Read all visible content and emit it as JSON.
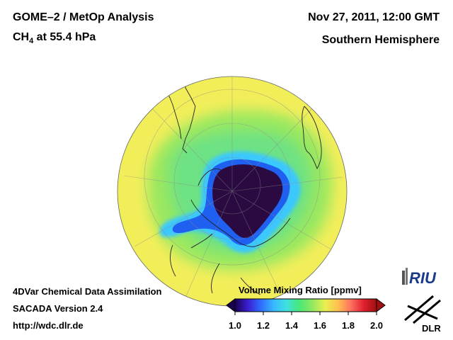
{
  "header": {
    "title_prefix": "GOME–2 / MetOp Analysis",
    "species_main": "CH",
    "species_sub": "4",
    "species_rest": " at 55.4 hPa",
    "date": "Nov 27, 2011, 12:00 GMT",
    "hemisphere": "Southern Hemisphere"
  },
  "footer": {
    "line1": "4DVar Chemical Data Assimilation",
    "line2": "SACADA Version 2.4",
    "line3": "http://wdc.dlr.de"
  },
  "colorbar": {
    "title": "Volume Mixing Ratio [ppmv]",
    "ticks": [
      "1.0",
      "1.2",
      "1.4",
      "1.6",
      "1.8",
      "2.0"
    ],
    "min": 1.0,
    "max": 2.0,
    "colors": [
      "#1a0050",
      "#3a1fd0",
      "#2f6cff",
      "#38b8ff",
      "#40e0e0",
      "#48e878",
      "#90e860",
      "#e8f050",
      "#ffc050",
      "#ff7060",
      "#e02030",
      "#a01010"
    ]
  },
  "map": {
    "projection": "orthographic-south-polar",
    "background_level": "#f2ee5a",
    "ring_level": "#9ae860",
    "edge_level": "#3ac8ff",
    "core_level": "#2a0a40"
  },
  "logos": {
    "riu": "RIU",
    "dlr": "DLR"
  }
}
